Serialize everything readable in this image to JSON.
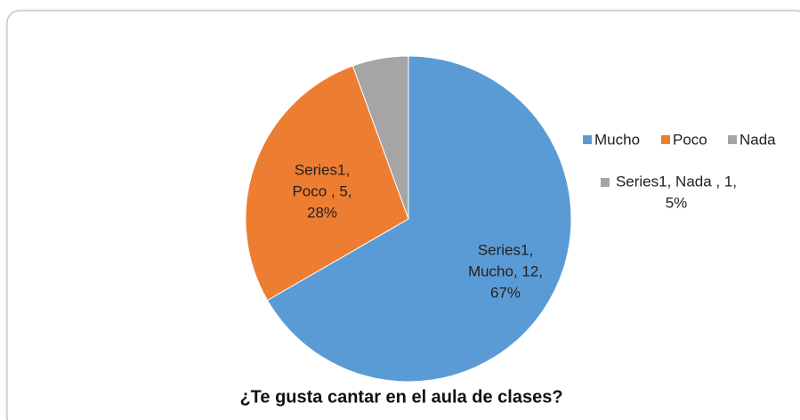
{
  "chart_data": {
    "type": "pie",
    "title": "¿Te gusta cantar en el aula de clases?",
    "series_name": "Series1",
    "categories": [
      "Mucho",
      "Poco ",
      "Nada "
    ],
    "values": [
      12,
      5,
      1
    ],
    "value_labels": [
      "67%",
      "28%",
      "5%"
    ],
    "colors": [
      "#5b9bd5",
      "#ed7d31",
      "#a5a5a5"
    ],
    "data_labels": [
      [
        "Series1,",
        "Mucho, 12,",
        "67%"
      ],
      [
        "Series1,",
        "Poco , 5,",
        "28%"
      ],
      [
        "Series1, Nada , 1,",
        "5%"
      ]
    ],
    "legend": "right"
  }
}
